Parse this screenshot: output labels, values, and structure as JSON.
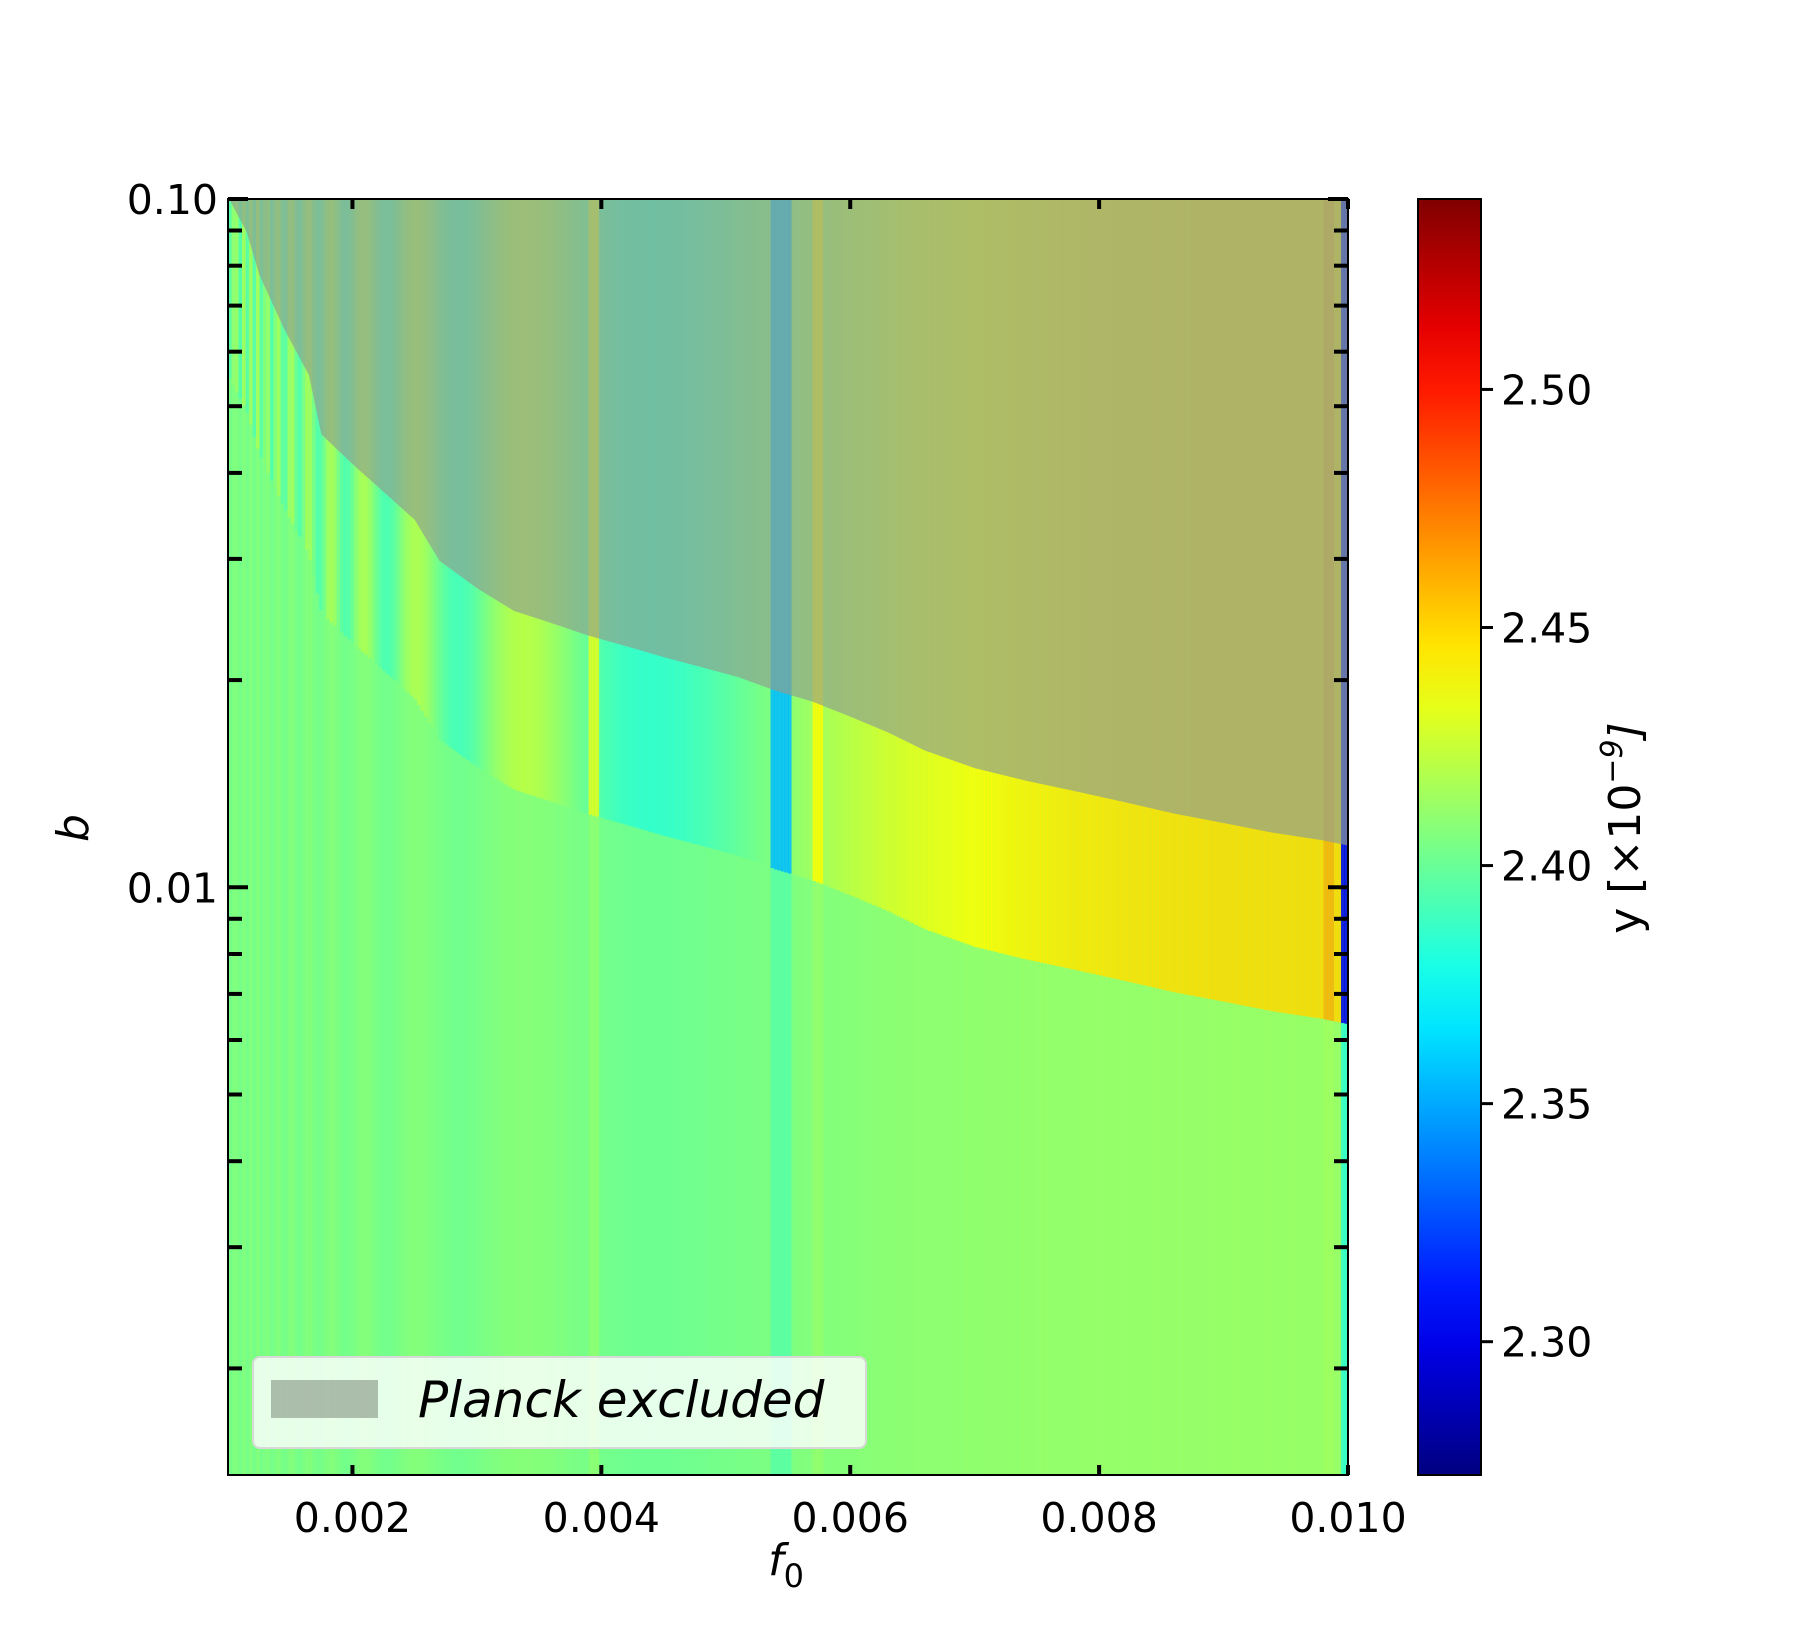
{
  "chart_data": {
    "type": "heatmap",
    "title": "",
    "xlabel": "f",
    "xlabel_subscript": "0",
    "ylabel": "b",
    "xlim": [
      0.001,
      0.01
    ],
    "ylim": [
      0.0014,
      0.1
    ],
    "yscale": "log",
    "grid": false,
    "x_ticks": [
      0.002,
      0.004,
      0.006,
      0.008,
      0.01
    ],
    "x_tick_labels": [
      "0.002",
      "0.004",
      "0.006",
      "0.008",
      "0.010"
    ],
    "y_ticks": [
      0.1,
      0.01
    ],
    "y_tick_labels": [
      "0.10",
      "0.01"
    ],
    "colormap": "jet",
    "colorbar": {
      "label": "y [×10",
      "label_exponent": "−9",
      "label_close": "]",
      "range": [
        2.272,
        2.54
      ],
      "ticks": [
        2.3,
        2.35,
        2.4,
        2.45,
        2.5
      ],
      "tick_labels": [
        "2.30",
        "2.35",
        "2.40",
        "2.45",
        "2.50"
      ]
    },
    "background_value": 2.405,
    "stripe_features": [
      {
        "f0_center": 0.00545,
        "width": 0.00018,
        "value": 2.355,
        "fade": "b"
      },
      {
        "f0_center": 0.00575,
        "width": 8e-05,
        "value": 2.44,
        "fade": "b"
      },
      {
        "f0_center": 0.00395,
        "width": 8e-05,
        "value": 2.43,
        "fade": "b"
      },
      {
        "f0_center": 0.00985,
        "width": 0.0001,
        "value": 2.46,
        "fade": "b"
      },
      {
        "f0_center": 0.00998,
        "width": 6e-05,
        "value": 2.3,
        "fade": "b"
      }
    ],
    "excluded_region": {
      "legend": "Planck excluded",
      "color": "#8f9f8f",
      "boundary": [
        [
          0.00101,
          0.1
        ],
        [
          0.00115,
          0.0895
        ],
        [
          0.00125,
          0.0777
        ],
        [
          0.00145,
          0.0648
        ],
        [
          0.00165,
          0.0555
        ],
        [
          0.00175,
          0.0455
        ],
        [
          0.002,
          0.0412
        ],
        [
          0.0025,
          0.0342
        ],
        [
          0.0027,
          0.0298
        ],
        [
          0.003,
          0.0272
        ],
        [
          0.0033,
          0.0252
        ],
        [
          0.0036,
          0.0242
        ],
        [
          0.0039,
          0.0232
        ],
        [
          0.0042,
          0.0224
        ],
        [
          0.0045,
          0.0216
        ],
        [
          0.0048,
          0.0209
        ],
        [
          0.0051,
          0.0202
        ],
        [
          0.0054,
          0.0193
        ],
        [
          0.0057,
          0.0186
        ],
        [
          0.006,
          0.0177
        ],
        [
          0.0063,
          0.0168
        ],
        [
          0.0066,
          0.0158
        ],
        [
          0.007,
          0.0149
        ],
        [
          0.0074,
          0.0143
        ],
        [
          0.0078,
          0.0138
        ],
        [
          0.0082,
          0.0133
        ],
        [
          0.0086,
          0.0128
        ],
        [
          0.009,
          0.0124
        ],
        [
          0.0094,
          0.012
        ],
        [
          0.0098,
          0.0117
        ],
        [
          0.01,
          0.0115
        ]
      ]
    },
    "legend_position": "lower-left"
  }
}
